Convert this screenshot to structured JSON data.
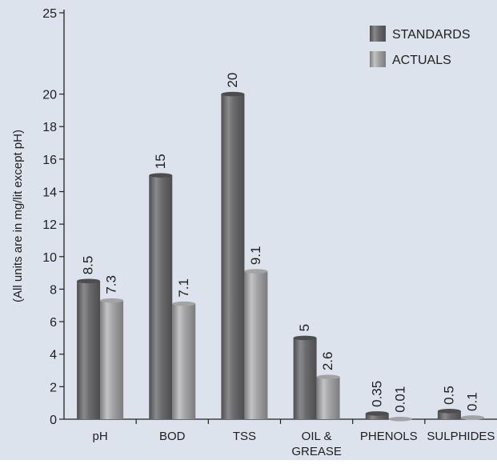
{
  "chart_data": {
    "type": "bar",
    "title": "",
    "xlabel": "",
    "ylabel": "(All units are in mg/lit except pH)",
    "ylim": [
      0,
      25
    ],
    "yticks": [
      0,
      2,
      4,
      6,
      8,
      10,
      12,
      14,
      16,
      18,
      20,
      25
    ],
    "categories": [
      [
        "pH"
      ],
      [
        "BOD"
      ],
      [
        "TSS"
      ],
      [
        "OIL &",
        "GREASE"
      ],
      [
        "PHENOLS"
      ],
      [
        "SULPHIDES"
      ]
    ],
    "series": [
      {
        "name": "STANDARDS",
        "values": [
          8.5,
          15,
          20,
          5,
          0.35,
          0.5
        ],
        "labels": [
          "8.5",
          "15",
          "20",
          "5",
          "0.35",
          "0.5"
        ]
      },
      {
        "name": "ACTUALS",
        "values": [
          7.3,
          7.1,
          9.1,
          2.6,
          0.01,
          0.1
        ],
        "labels": [
          "7.3",
          "7.1",
          "9.1",
          "2.6",
          "0.01",
          "0.1"
        ]
      }
    ],
    "legend_position": "top-right",
    "grid": false
  },
  "colors": {
    "background": "#dde3ec",
    "standards_dark": "#4d4d4f",
    "standards_mid": "#6a6a6c",
    "standards_light": "#8a8a8c",
    "actuals_dark": "#7c7c7e",
    "actuals_mid": "#a3a3a5",
    "actuals_light": "#c4c4c6",
    "axis": "#222222"
  }
}
